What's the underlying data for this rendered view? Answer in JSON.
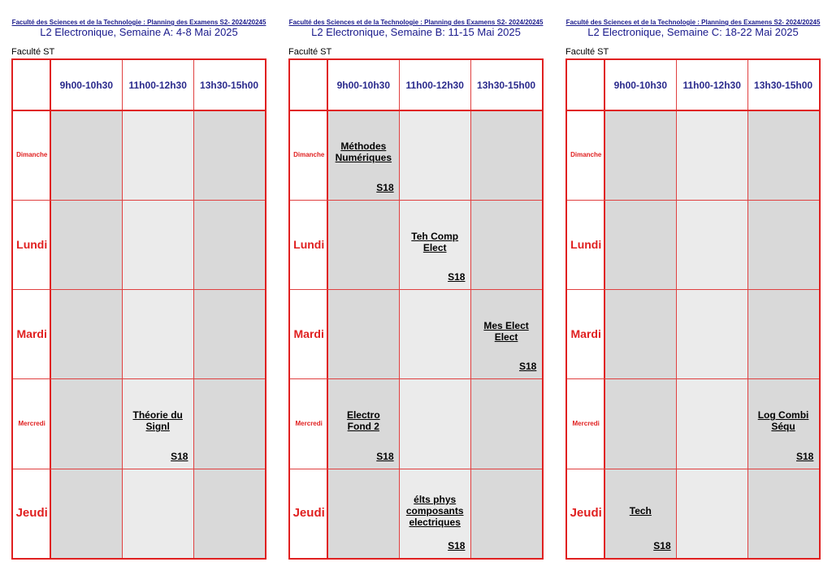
{
  "header": {
    "top_line": "Faculté des Sciences et de la Technologie : Planning des Examens S2- 2024/20245",
    "faculty": "Faculté ST"
  },
  "time_slots": [
    "9h00-10h30",
    "11h00-12h30",
    "13h30-15h00"
  ],
  "days": [
    "Dimanche",
    "Lundi",
    "Mardi",
    "Mercredi",
    "Jeudi"
  ],
  "weeks": [
    {
      "title": "L2 Electronique, Semaine A: 4-8 Mai 2025",
      "exams": [
        {
          "day": 3,
          "slot": 1,
          "lines": [
            "Théorie du",
            "Signl"
          ],
          "room": "S18"
        }
      ]
    },
    {
      "title": "L2 Electronique, Semaine B: 11-15 Mai 2025",
      "exams": [
        {
          "day": 0,
          "slot": 0,
          "lines": [
            "Méthodes",
            "Numériques"
          ],
          "room": "S18"
        },
        {
          "day": 1,
          "slot": 1,
          "lines": [
            "Teh Comp",
            "Elect"
          ],
          "room": "S18"
        },
        {
          "day": 2,
          "slot": 2,
          "lines": [
            "Mes Elect",
            "Elect"
          ],
          "room": "S18"
        },
        {
          "day": 3,
          "slot": 0,
          "lines": [
            "Electro",
            "Fond 2"
          ],
          "room": "S18"
        },
        {
          "day": 4,
          "slot": 1,
          "lines": [
            "élts phys",
            "composants",
            "electriques"
          ],
          "room": "S18"
        }
      ]
    },
    {
      "title": "L2 Electronique, Semaine C: 18-22 Mai 2025",
      "exams": [
        {
          "day": 3,
          "slot": 2,
          "lines": [
            "Log Combi",
            "Séqu"
          ],
          "room": "S18"
        },
        {
          "day": 4,
          "slot": 0,
          "lines": [
            "Tech"
          ],
          "room": "S18"
        }
      ]
    }
  ],
  "colors": {
    "grid_red": "#e02020",
    "header_blue": "#1a1a8c",
    "cell_dark": "#d9d9d9",
    "cell_light": "#ebebeb"
  }
}
